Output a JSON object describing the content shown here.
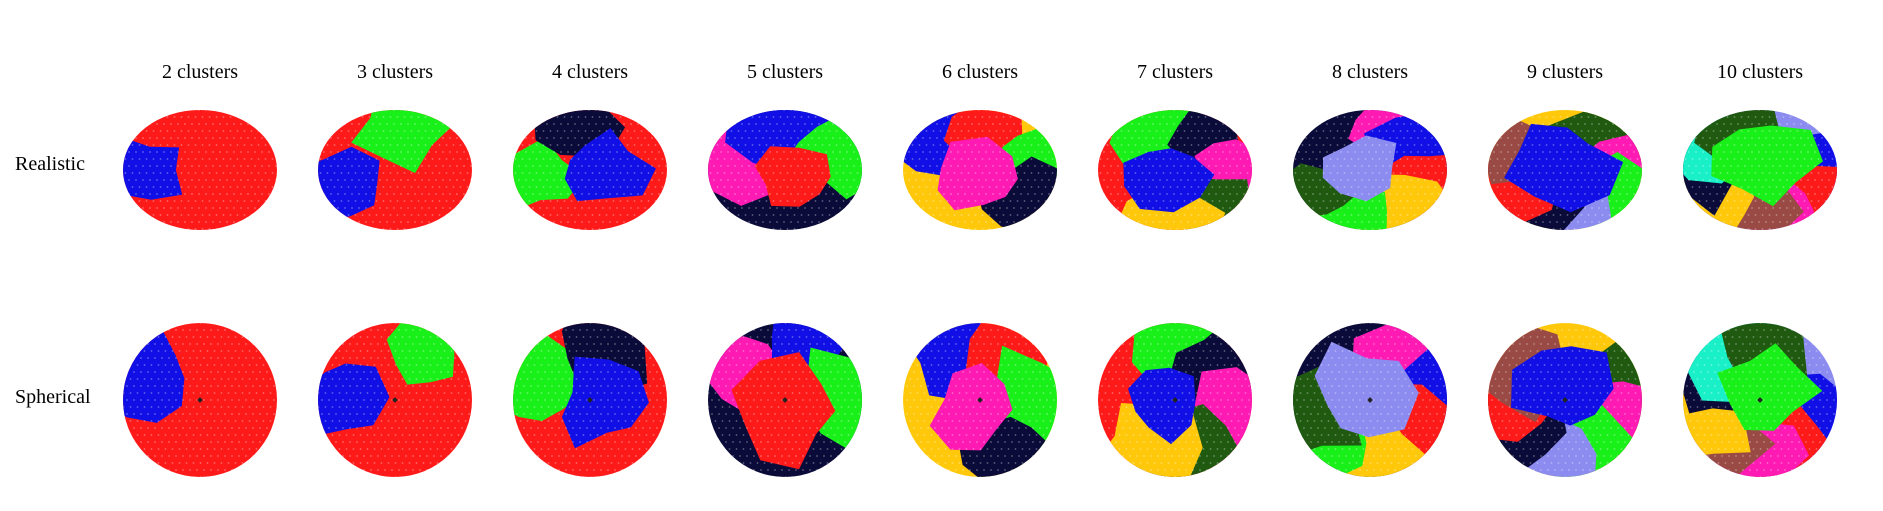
{
  "columns": [
    {
      "label": "2 clusters"
    },
    {
      "label": "3 clusters"
    },
    {
      "label": "4 clusters"
    },
    {
      "label": "5 clusters"
    },
    {
      "label": "6 clusters"
    },
    {
      "label": "7 clusters"
    },
    {
      "label": "8 clusters"
    },
    {
      "label": "9 clusters"
    },
    {
      "label": "10 clusters"
    }
  ],
  "rows": [
    {
      "label": "Realistic",
      "shape": "ellipsoid"
    },
    {
      "label": "Spherical",
      "shape": "sphere"
    }
  ],
  "palette": {
    "red": "#ff1a1a",
    "blue": "#1010e6",
    "green": "#19f019",
    "navy": "#0b0b3a",
    "pink": "#ff1ab4",
    "yellow": "#ffc80a",
    "darkgreen": "#1f5a10",
    "lavender": "#8c8cf0",
    "brown": "#9a4a44",
    "cyan": "#19f0c8"
  },
  "clusterings": [
    [
      "red",
      "blue"
    ],
    [
      "red",
      "blue",
      "green"
    ],
    [
      "red",
      "green",
      "navy",
      "blue"
    ],
    [
      "navy",
      "pink",
      "blue",
      "green",
      "red"
    ],
    [
      "yellow",
      "blue",
      "red",
      "green",
      "navy",
      "pink"
    ],
    [
      "red",
      "green",
      "navy",
      "pink",
      "darkgreen",
      "yellow",
      "blue"
    ],
    [
      "navy",
      "pink",
      "blue",
      "red",
      "yellow",
      "green",
      "darkgreen",
      "lavender"
    ],
    [
      "yellow",
      "darkgreen",
      "pink",
      "green",
      "lavender",
      "navy",
      "red",
      "brown",
      "blue"
    ],
    [
      "lavender",
      "blue",
      "red",
      "pink",
      "brown",
      "yellow",
      "navy",
      "cyan",
      "darkgreen",
      "green"
    ]
  ]
}
